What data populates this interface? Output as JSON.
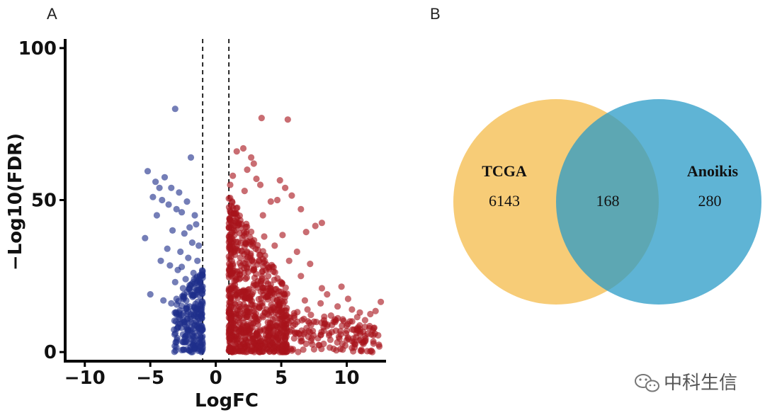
{
  "chart_data": [
    {
      "panel": "A",
      "type": "scatter",
      "title": "",
      "xlabel": "LogFC",
      "ylabel": "−Log10(FDR)",
      "xlim": [
        -11.5,
        13
      ],
      "ylim": [
        -3,
        103
      ],
      "xticks": [
        -10,
        -5,
        0,
        5,
        10
      ],
      "xtick_labels": [
        "−10",
        "−5",
        "0",
        "5",
        "10"
      ],
      "yticks": [
        0,
        50,
        100
      ],
      "ytick_labels": [
        "0",
        "50",
        "100"
      ],
      "thresholds": [
        -1,
        1
      ],
      "series": [
        {
          "name": "down",
          "color": "#1f2f8a",
          "points": [
            [
              -3.1,
              80
            ],
            [
              -1.9,
              64
            ],
            [
              -5.2,
              59.5
            ],
            [
              -4.6,
              56
            ],
            [
              -4.3,
              54
            ],
            [
              -3.9,
              57.5
            ],
            [
              -3.4,
              54
            ],
            [
              -4.8,
              51
            ],
            [
              -2.8,
              52.5
            ],
            [
              -4.1,
              50
            ],
            [
              -2.2,
              49.5
            ],
            [
              -3.6,
              48.5
            ],
            [
              -3.0,
              47
            ],
            [
              -2.6,
              46
            ],
            [
              -1.6,
              45
            ],
            [
              -4.5,
              45
            ],
            [
              -2.0,
              41
            ],
            [
              -3.3,
              40
            ],
            [
              -2.4,
              39
            ],
            [
              -1.5,
              42
            ],
            [
              -5.4,
              37.5
            ],
            [
              -3.7,
              34
            ],
            [
              -2.7,
              33
            ],
            [
              -1.8,
              36
            ],
            [
              -1.3,
              35
            ],
            [
              -2.1,
              31
            ],
            [
              -4.2,
              30
            ],
            [
              -3.5,
              28.5
            ],
            [
              -2.9,
              27
            ],
            [
              -1.7,
              26
            ],
            [
              -1.2,
              25
            ],
            [
              -2.3,
              24
            ],
            [
              -3.1,
              23
            ],
            [
              -1.9,
              22
            ],
            [
              -5.0,
              19
            ],
            [
              -2.5,
              21
            ],
            [
              -1.4,
              20
            ],
            [
              -4.0,
              17
            ],
            [
              -3.4,
              16
            ],
            [
              -2.0,
              15
            ],
            [
              -1.6,
              14.5
            ],
            [
              -2.8,
              13
            ],
            [
              -1.1,
              12
            ],
            [
              -2.2,
              11
            ],
            [
              -1.5,
              10
            ],
            [
              -3.0,
              17.5
            ],
            [
              -1.3,
              8
            ],
            [
              -1.8,
              6
            ],
            [
              -2.1,
              5
            ],
            [
              -1.2,
              3
            ],
            [
              -1.6,
              1.5
            ],
            [
              -2.6,
              28
            ],
            [
              -2.4,
              18
            ],
            [
              -1.4,
              30
            ]
          ]
        },
        {
          "name": "up",
          "color": "#a8141b",
          "points": [
            [
              3.5,
              77
            ],
            [
              5.5,
              76.5
            ],
            [
              2.1,
              67
            ],
            [
              1.6,
              66
            ],
            [
              2.7,
              64
            ],
            [
              2.9,
              62
            ],
            [
              2.4,
              60
            ],
            [
              1.3,
              58
            ],
            [
              3.1,
              57
            ],
            [
              1.1,
              55
            ],
            [
              3.4,
              55
            ],
            [
              4.9,
              56.5
            ],
            [
              5.3,
              54
            ],
            [
              4.2,
              49.5
            ],
            [
              2.2,
              53
            ],
            [
              5.8,
              51.5
            ],
            [
              4.7,
              50
            ],
            [
              6.5,
              47
            ],
            [
              8.1,
              42.5
            ],
            [
              7.6,
              41.5
            ],
            [
              6.9,
              39.5
            ],
            [
              3.7,
              38
            ],
            [
              5.1,
              38.5
            ],
            [
              4.5,
              35
            ],
            [
              6.2,
              33
            ],
            [
              5.6,
              30
            ],
            [
              7.2,
              29
            ],
            [
              2.9,
              27
            ],
            [
              4.0,
              25
            ],
            [
              6.5,
              25
            ],
            [
              8.1,
              21
            ],
            [
              8.5,
              19
            ],
            [
              9.6,
              21.5
            ],
            [
              10.1,
              17.5
            ],
            [
              9.3,
              15
            ],
            [
              10.4,
              14
            ],
            [
              11.0,
              13
            ],
            [
              10.8,
              11.5
            ],
            [
              11.4,
              10.5
            ],
            [
              12.2,
              13.5
            ],
            [
              12.6,
              16.5
            ],
            [
              11.8,
              12.5
            ],
            [
              12.1,
              8
            ],
            [
              11.6,
              6
            ],
            [
              9.0,
              10
            ],
            [
              8.5,
              8.5
            ],
            [
              10.0,
              7
            ],
            [
              10.5,
              4.5
            ],
            [
              7.2,
              6.5
            ],
            [
              7.8,
              4.5
            ],
            [
              6.5,
              3.5
            ],
            [
              5.4,
              2.5
            ],
            [
              4.4,
              1.5
            ],
            [
              3.2,
              1.0
            ],
            [
              2.6,
              18
            ],
            [
              1.8,
              24
            ],
            [
              1.4,
              40
            ],
            [
              1.2,
              48
            ],
            [
              3.6,
              45
            ],
            [
              2.4,
              33
            ],
            [
              3.9,
              14
            ],
            [
              4.8,
              20
            ],
            [
              6.0,
              12
            ],
            [
              5.0,
              9
            ],
            [
              7.0,
              14
            ],
            [
              8.8,
              12
            ],
            [
              9.4,
              5
            ],
            [
              11.2,
              3
            ],
            [
              12.4,
              5.5
            ],
            [
              6.8,
              17
            ],
            [
              7.5,
              10
            ],
            [
              8.0,
              16
            ]
          ]
        }
      ]
    },
    {
      "panel": "B",
      "type": "venn",
      "sets": [
        {
          "name": "TCGA",
          "unique": 6143,
          "color": "#f4b943"
        },
        {
          "name": "Anoikis",
          "unique": 280,
          "color": "#2a9bc7"
        }
      ],
      "intersection": 168
    }
  ],
  "panel_labels": {
    "a": "A",
    "b": "B"
  },
  "venn_text": {
    "set1_name": "TCGA",
    "set1_count": "6143",
    "intersection_count": "168",
    "set2_name": "Anoikis",
    "set2_count": "280"
  },
  "watermark": {
    "text": "中科生信",
    "icon": "wechat-icon"
  }
}
